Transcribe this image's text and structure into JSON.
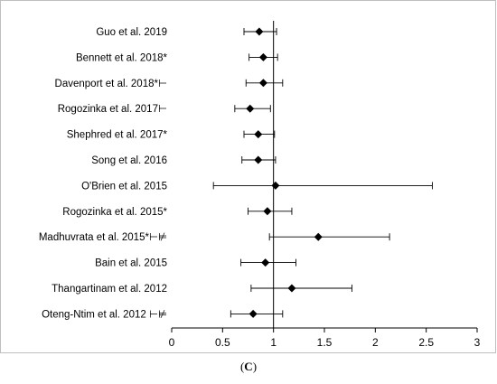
{
  "caption": {
    "open": "(",
    "letter": "C",
    "close": ")"
  },
  "chart_data": {
    "type": "scatter",
    "subtype": "forest-plot",
    "title": "",
    "xlabel": "",
    "ylabel": "",
    "xlim": [
      0,
      3
    ],
    "xticks": [
      "0",
      "0.5",
      "1",
      "1.5",
      "2",
      "2.5",
      "3"
    ],
    "reference_line": 1,
    "grid": false,
    "marker": "diamond",
    "color": "#000000",
    "studies": [
      {
        "label": "Guo et al. 2019",
        "estimate": 0.86,
        "lower": 0.71,
        "upper": 1.03
      },
      {
        "label": "Bennett et al. 2018*",
        "estimate": 0.9,
        "lower": 0.76,
        "upper": 1.04
      },
      {
        "label": "Davenport et al. 2018*⊢",
        "estimate": 0.9,
        "lower": 0.73,
        "upper": 1.09
      },
      {
        "label": "Rogozinka et al. 2017⊢",
        "estimate": 0.77,
        "lower": 0.62,
        "upper": 0.97
      },
      {
        "label": "Shephred et al. 2017*",
        "estimate": 0.85,
        "lower": 0.71,
        "upper": 1.01
      },
      {
        "label": "Song et al. 2016",
        "estimate": 0.85,
        "lower": 0.69,
        "upper": 1.02
      },
      {
        "label": "O'Brien  et al. 2015",
        "estimate": 1.02,
        "lower": 0.41,
        "upper": 2.56
      },
      {
        "label": "Rogozinka et al. 2015*",
        "estimate": 0.94,
        "lower": 0.75,
        "upper": 1.18
      },
      {
        "label": "Madhuvrata et al. 2015*⊢⊭",
        "estimate": 1.44,
        "lower": 0.96,
        "upper": 2.14
      },
      {
        "label": "Bain et al. 2015",
        "estimate": 0.92,
        "lower": 0.68,
        "upper": 1.22
      },
      {
        "label": "Thangartinam et al. 2012",
        "estimate": 1.18,
        "lower": 0.78,
        "upper": 1.77
      },
      {
        "label": "Oteng-Ntim et al. 2012 ⊢⊭",
        "estimate": 0.8,
        "lower": 0.58,
        "upper": 1.09
      }
    ]
  }
}
